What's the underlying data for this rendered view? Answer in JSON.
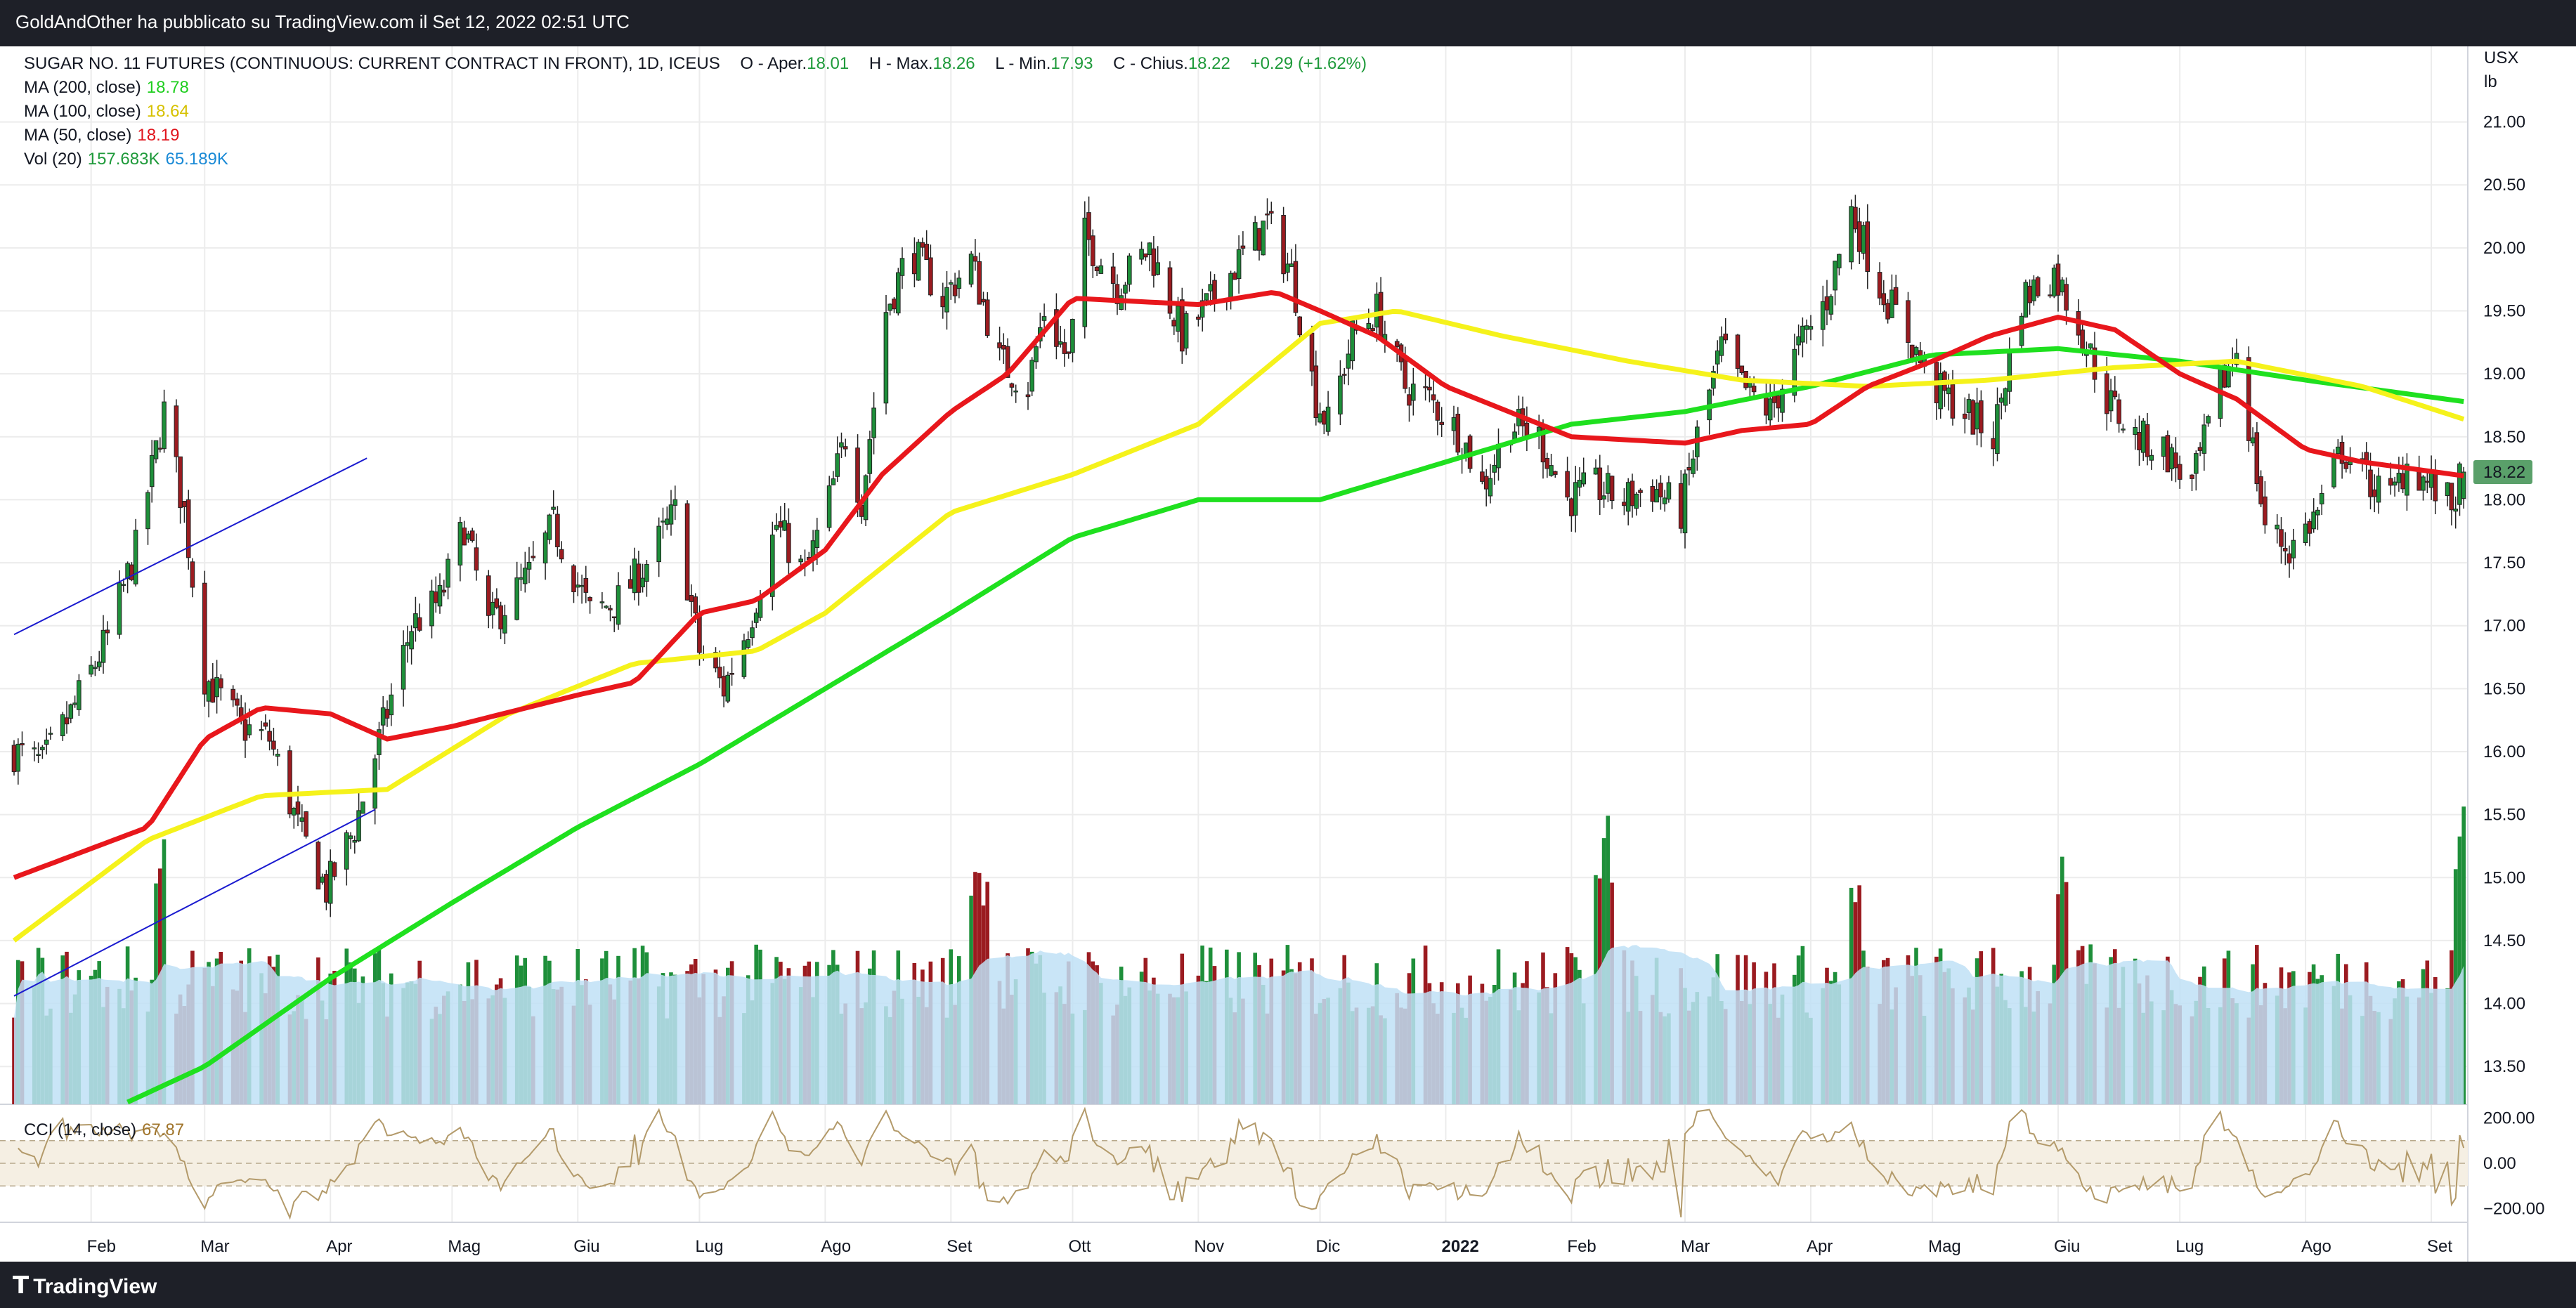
{
  "header": {
    "published_text": "GoldAndOther ha pubblicato su TradingView.com il Set 12, 2022 02:51 UTC"
  },
  "footer": {
    "logo_text": "TradingView",
    "logo_icon": "tradingview-logo-icon"
  },
  "legend": {
    "symbol": "SUGAR NO. 11 FUTURES (CONTINUOUS: CURRENT CONTRACT IN FRONT), 1D, ICEUS",
    "open_label": "O - Apertura",
    "open_text": "O - Aper.",
    "open_value": "18.01",
    "high_text": "H - Max.",
    "high_value": "18.26",
    "low_text": "L - Min.",
    "low_value": "17.93",
    "close_text": "C - Chius.",
    "close_value": "18.22",
    "change_text": "+0.29 (+1.62%)",
    "ma200_label": "MA (200, close)",
    "ma200_value": "18.78",
    "ma100_label": "MA (100, close)",
    "ma100_value": "18.64",
    "ma50_label": "MA (50, close)",
    "ma50_value": "18.19",
    "vol_label": "Vol (20)",
    "vol_value": "157.683K",
    "vol_ma_value": "65.189K",
    "cci_label": "CCI (14, close)",
    "cci_value": "67.87"
  },
  "units": {
    "currency": "USX",
    "unit": "lb"
  },
  "price_badge": "18.22",
  "colors": {
    "up": "#1e8f3a",
    "down": "#9b1b20",
    "ma200": "#1fe01f",
    "ma100": "#f5f21b",
    "ma50": "#e8171c",
    "vol_ma_fill": "#bfe1f6",
    "cci_line": "#b39a6a",
    "cci_band": "#f5efe3",
    "trendline": "#1a1acf",
    "badge": "#5aa06a"
  },
  "chart_data": [
    {
      "type": "candlestick",
      "title": "SUGAR NO. 11 FUTURES (CONTINUOUS: CURRENT CONTRACT IN FRONT), 1D, ICEUS",
      "ylim": [
        13.2,
        21.6
      ],
      "y_ticks": [
        13.5,
        14,
        14.5,
        15,
        15.5,
        16,
        16.5,
        17,
        17.5,
        18,
        18.5,
        19,
        19.5,
        20,
        20.5,
        21
      ],
      "y_tick_labels": [
        "13.50",
        "14.00",
        "14.50",
        "15.00",
        "15.50",
        "16.00",
        "16.50",
        "17.00",
        "17.50",
        "18.00",
        "18.50",
        "19.00",
        "19.50",
        "20.00",
        "20.50",
        "21.00"
      ],
      "x_range": [
        "2021-01-13",
        "2022-09-10"
      ],
      "x_ticks": [
        {
          "date": "2021-02-01",
          "label": "Feb",
          "bold": false
        },
        {
          "date": "2021-03-01",
          "label": "Mar",
          "bold": false
        },
        {
          "date": "2021-04-01",
          "label": "Apr",
          "bold": false
        },
        {
          "date": "2021-05-01",
          "label": "Mag",
          "bold": false
        },
        {
          "date": "2021-06-01",
          "label": "Giu",
          "bold": false
        },
        {
          "date": "2021-07-01",
          "label": "Lug",
          "bold": false
        },
        {
          "date": "2021-08-01",
          "label": "Ago",
          "bold": false
        },
        {
          "date": "2021-09-01",
          "label": "Set",
          "bold": false
        },
        {
          "date": "2021-10-01",
          "label": "Ott",
          "bold": false
        },
        {
          "date": "2021-11-01",
          "label": "Nov",
          "bold": false
        },
        {
          "date": "2021-12-01",
          "label": "Dic",
          "bold": false
        },
        {
          "date": "2022-01-01",
          "label": "2022",
          "bold": true
        },
        {
          "date": "2022-02-01",
          "label": "Feb",
          "bold": false
        },
        {
          "date": "2022-03-01",
          "label": "Mar",
          "bold": false
        },
        {
          "date": "2022-04-01",
          "label": "Apr",
          "bold": false
        },
        {
          "date": "2022-05-01",
          "label": "Mag",
          "bold": false
        },
        {
          "date": "2022-06-01",
          "label": "Giu",
          "bold": false
        },
        {
          "date": "2022-07-01",
          "label": "Lug",
          "bold": false
        },
        {
          "date": "2022-08-01",
          "label": "Ago",
          "bold": false
        },
        {
          "date": "2022-09-01",
          "label": "Set",
          "bold": false
        }
      ],
      "close_keypoints": [
        [
          "2021-01-13",
          16.0
        ],
        [
          "2021-01-20",
          15.9
        ],
        [
          "2021-01-27",
          16.3
        ],
        [
          "2021-02-05",
          16.9
        ],
        [
          "2021-02-12",
          17.6
        ],
        [
          "2021-02-19",
          18.7
        ],
        [
          "2021-02-24",
          17.9
        ],
        [
          "2021-03-01",
          16.6
        ],
        [
          "2021-03-10",
          16.2
        ],
        [
          "2021-03-17",
          16.1
        ],
        [
          "2021-03-24",
          15.4
        ],
        [
          "2021-03-31",
          14.9
        ],
        [
          "2021-04-07",
          15.4
        ],
        [
          "2021-04-14",
          16.2
        ],
        [
          "2021-04-21",
          17.0
        ],
        [
          "2021-04-28",
          17.2
        ],
        [
          "2021-05-04",
          17.8
        ],
        [
          "2021-05-10",
          17.0
        ],
        [
          "2021-05-20",
          17.4
        ],
        [
          "2021-05-26",
          17.8
        ],
        [
          "2021-06-04",
          17.1
        ],
        [
          "2021-06-11",
          17.2
        ],
        [
          "2021-06-18",
          17.5
        ],
        [
          "2021-06-25",
          17.9
        ],
        [
          "2021-07-01",
          16.8
        ],
        [
          "2021-07-07",
          16.5
        ],
        [
          "2021-07-13",
          17.0
        ],
        [
          "2021-07-20",
          17.8
        ],
        [
          "2021-07-27",
          17.4
        ],
        [
          "2021-08-02",
          18.0
        ],
        [
          "2021-08-06",
          18.5
        ],
        [
          "2021-08-10",
          18.0
        ],
        [
          "2021-08-16",
          19.5
        ],
        [
          "2021-08-22",
          20.0
        ],
        [
          "2021-08-30",
          19.6
        ],
        [
          "2021-09-06",
          19.9
        ],
        [
          "2021-09-13",
          19.1
        ],
        [
          "2021-09-20",
          18.9
        ],
        [
          "2021-09-24",
          19.5
        ],
        [
          "2021-09-30",
          19.1
        ],
        [
          "2021-10-04",
          20.1
        ],
        [
          "2021-10-12",
          19.7
        ],
        [
          "2021-10-20",
          20.0
        ],
        [
          "2021-10-28",
          19.3
        ],
        [
          "2021-11-05",
          19.6
        ],
        [
          "2021-11-11",
          19.9
        ],
        [
          "2021-11-18",
          20.2
        ],
        [
          "2021-11-24",
          19.8
        ],
        [
          "2021-11-30",
          18.8
        ],
        [
          "2021-12-03",
          18.6
        ],
        [
          "2021-12-09",
          19.3
        ],
        [
          "2021-12-15",
          19.5
        ],
        [
          "2021-12-22",
          18.9
        ],
        [
          "2021-12-28",
          18.8
        ],
        [
          "2022-01-05",
          18.5
        ],
        [
          "2022-01-10",
          18.1
        ],
        [
          "2022-01-17",
          18.6
        ],
        [
          "2022-01-24",
          18.5
        ],
        [
          "2022-01-31",
          18.0
        ],
        [
          "2022-02-07",
          18.1
        ],
        [
          "2022-02-14",
          18.0
        ],
        [
          "2022-02-21",
          18.1
        ],
        [
          "2022-02-28",
          17.9
        ],
        [
          "2022-03-04",
          18.5
        ],
        [
          "2022-03-10",
          19.2
        ],
        [
          "2022-03-15",
          18.9
        ],
        [
          "2022-03-22",
          18.7
        ],
        [
          "2022-03-29",
          19.2
        ],
        [
          "2022-04-05",
          19.6
        ],
        [
          "2022-04-11",
          20.3
        ],
        [
          "2022-04-18",
          19.7
        ],
        [
          "2022-04-25",
          19.3
        ],
        [
          "2022-05-01",
          18.9
        ],
        [
          "2022-05-09",
          18.7
        ],
        [
          "2022-05-16",
          18.5
        ],
        [
          "2022-05-23",
          19.6
        ],
        [
          "2022-05-31",
          19.8
        ],
        [
          "2022-06-06",
          19.4
        ],
        [
          "2022-06-13",
          18.8
        ],
        [
          "2022-06-20",
          18.5
        ],
        [
          "2022-06-27",
          18.4
        ],
        [
          "2022-07-04",
          18.1
        ],
        [
          "2022-07-11",
          18.9
        ],
        [
          "2022-07-15",
          19.2
        ],
        [
          "2022-07-19",
          18.4
        ],
        [
          "2022-07-22",
          17.8
        ],
        [
          "2022-07-28",
          17.6
        ],
        [
          "2022-08-04",
          17.9
        ],
        [
          "2022-08-10",
          18.4
        ],
        [
          "2022-08-15",
          18.2
        ],
        [
          "2022-08-22",
          18.0
        ],
        [
          "2022-08-26",
          18.3
        ],
        [
          "2022-09-01",
          18.1
        ],
        [
          "2022-09-06",
          17.95
        ],
        [
          "2022-09-09",
          18.22
        ]
      ],
      "ma_keypoints": {
        "MA (200, close)": [
          [
            "2021-01-13",
            12.8
          ],
          [
            "2021-03-01",
            13.5
          ],
          [
            "2021-04-01",
            14.2
          ],
          [
            "2021-05-01",
            14.8
          ],
          [
            "2021-06-01",
            15.4
          ],
          [
            "2021-07-01",
            15.9
          ],
          [
            "2021-08-01",
            16.5
          ],
          [
            "2021-09-01",
            17.1
          ],
          [
            "2021-10-01",
            17.7
          ],
          [
            "2021-11-01",
            18.0
          ],
          [
            "2021-12-01",
            18.0
          ],
          [
            "2022-01-01",
            18.3
          ],
          [
            "2022-02-01",
            18.6
          ],
          [
            "2022-03-01",
            18.7
          ],
          [
            "2022-04-01",
            18.9
          ],
          [
            "2022-05-01",
            19.15
          ],
          [
            "2022-06-01",
            19.2
          ],
          [
            "2022-07-01",
            19.1
          ],
          [
            "2022-08-01",
            18.95
          ],
          [
            "2022-09-09",
            18.78
          ]
        ],
        "MA (100, close)": [
          [
            "2021-01-13",
            14.5
          ],
          [
            "2021-02-15",
            15.3
          ],
          [
            "2021-03-15",
            15.65
          ],
          [
            "2021-04-15",
            15.7
          ],
          [
            "2021-05-15",
            16.3
          ],
          [
            "2021-06-15",
            16.7
          ],
          [
            "2021-07-15",
            16.8
          ],
          [
            "2021-08-01",
            17.1
          ],
          [
            "2021-09-01",
            17.9
          ],
          [
            "2021-10-01",
            18.2
          ],
          [
            "2021-11-01",
            18.6
          ],
          [
            "2021-12-01",
            19.4
          ],
          [
            "2021-12-20",
            19.5
          ],
          [
            "2022-01-15",
            19.3
          ],
          [
            "2022-02-15",
            19.1
          ],
          [
            "2022-03-15",
            18.95
          ],
          [
            "2022-04-15",
            18.9
          ],
          [
            "2022-05-15",
            18.95
          ],
          [
            "2022-06-15",
            19.05
          ],
          [
            "2022-07-15",
            19.1
          ],
          [
            "2022-08-15",
            18.9
          ],
          [
            "2022-09-09",
            18.64
          ]
        ],
        "MA (50, close)": [
          [
            "2021-01-13",
            15.0
          ],
          [
            "2021-02-15",
            15.4
          ],
          [
            "2021-03-01",
            16.1
          ],
          [
            "2021-03-15",
            16.35
          ],
          [
            "2021-04-01",
            16.3
          ],
          [
            "2021-04-15",
            16.1
          ],
          [
            "2021-05-01",
            16.2
          ],
          [
            "2021-06-01",
            16.45
          ],
          [
            "2021-06-15",
            16.55
          ],
          [
            "2021-07-01",
            17.1
          ],
          [
            "2021-07-15",
            17.2
          ],
          [
            "2021-08-01",
            17.6
          ],
          [
            "2021-08-15",
            18.2
          ],
          [
            "2021-09-01",
            18.7
          ],
          [
            "2021-09-15",
            19.0
          ],
          [
            "2021-10-01",
            19.6
          ],
          [
            "2021-11-01",
            19.55
          ],
          [
            "2021-11-20",
            19.65
          ],
          [
            "2021-12-01",
            19.5
          ],
          [
            "2021-12-15",
            19.3
          ],
          [
            "2022-01-01",
            18.9
          ],
          [
            "2022-02-01",
            18.5
          ],
          [
            "2022-03-01",
            18.45
          ],
          [
            "2022-03-15",
            18.55
          ],
          [
            "2022-04-01",
            18.6
          ],
          [
            "2022-04-15",
            18.9
          ],
          [
            "2022-05-01",
            19.1
          ],
          [
            "2022-05-15",
            19.3
          ],
          [
            "2022-06-01",
            19.45
          ],
          [
            "2022-06-15",
            19.35
          ],
          [
            "2022-07-01",
            19.0
          ],
          [
            "2022-07-15",
            18.8
          ],
          [
            "2022-08-01",
            18.4
          ],
          [
            "2022-08-15",
            18.3
          ],
          [
            "2022-09-09",
            18.19
          ]
        ]
      }
    },
    {
      "type": "bar",
      "title": "Vol (20)",
      "ylim": [
        0,
        160000
      ],
      "values_desc": "daily volume bars colored by candle direction with 20-day volume moving average area",
      "last_value": 157683,
      "ma_value": 65189,
      "spike_keypoints": [
        [
          "2021-02-19",
          150000
        ],
        [
          "2021-09-08",
          140000
        ],
        [
          "2022-02-09",
          155000
        ],
        [
          "2022-04-11",
          120000
        ],
        [
          "2022-06-03",
          140000
        ],
        [
          "2022-09-09",
          157683
        ]
      ]
    },
    {
      "type": "line",
      "title": "CCI (14, close)",
      "ylim": [
        -260,
        260
      ],
      "y_ticks": [
        200,
        0,
        -200
      ],
      "y_tick_labels": [
        "200.00",
        "0.00",
        "−200.00"
      ],
      "band": [
        -100,
        100
      ],
      "last_value": 67.87
    }
  ]
}
